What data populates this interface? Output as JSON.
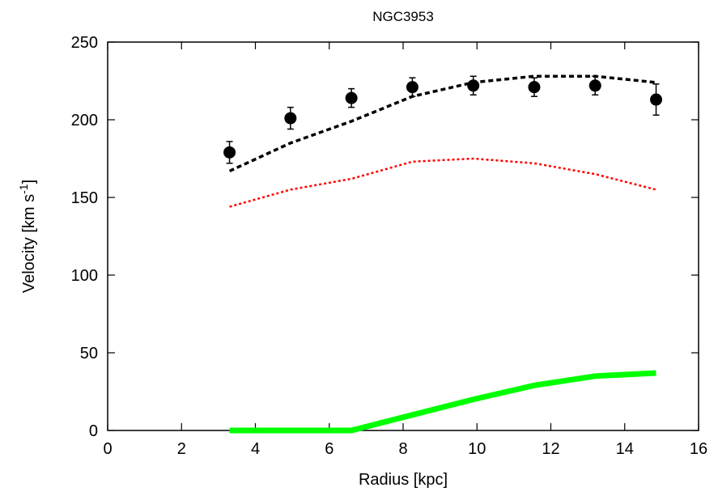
{
  "chart_data": {
    "type": "line",
    "title": "NGC3953",
    "xlabel": "Radius [kpc]",
    "ylabel_main": "Velocity [km s",
    "ylabel_sup": "-1",
    "ylabel_close": "]",
    "xlim": [
      0,
      16
    ],
    "ylim": [
      0,
      250
    ],
    "xticks": [
      0,
      2,
      4,
      6,
      8,
      10,
      12,
      14,
      16
    ],
    "yticks": [
      0,
      50,
      100,
      150,
      200,
      250
    ],
    "grid": false,
    "legend": "none",
    "observed": {
      "x": [
        3.3,
        4.95,
        6.6,
        8.25,
        9.9,
        11.55,
        13.2,
        14.85
      ],
      "y": [
        179,
        201,
        214,
        221,
        222,
        221,
        222,
        213
      ],
      "err": [
        7,
        7,
        6,
        6,
        6,
        6,
        6,
        10
      ],
      "color": "#000000"
    },
    "series": [
      {
        "style": "dashed",
        "color": "#000000",
        "x": [
          3.3,
          4.95,
          6.6,
          8.25,
          9.9,
          11.55,
          13.2,
          14.85
        ],
        "y": [
          167,
          185,
          199,
          215,
          224,
          228,
          228,
          224
        ]
      },
      {
        "style": "dotted",
        "color": "#ff0000",
        "x": [
          3.3,
          4.95,
          6.6,
          8.25,
          9.9,
          11.55,
          13.2,
          14.85
        ],
        "y": [
          144,
          155,
          162,
          173,
          175,
          172,
          165,
          155
        ]
      },
      {
        "style": "thick",
        "color": "#00ff00",
        "x": [
          3.3,
          4.95,
          6.6,
          8.25,
          9.9,
          11.55,
          13.2,
          14.85
        ],
        "y": [
          0,
          0,
          0,
          10,
          20,
          29,
          35,
          37
        ]
      }
    ]
  }
}
